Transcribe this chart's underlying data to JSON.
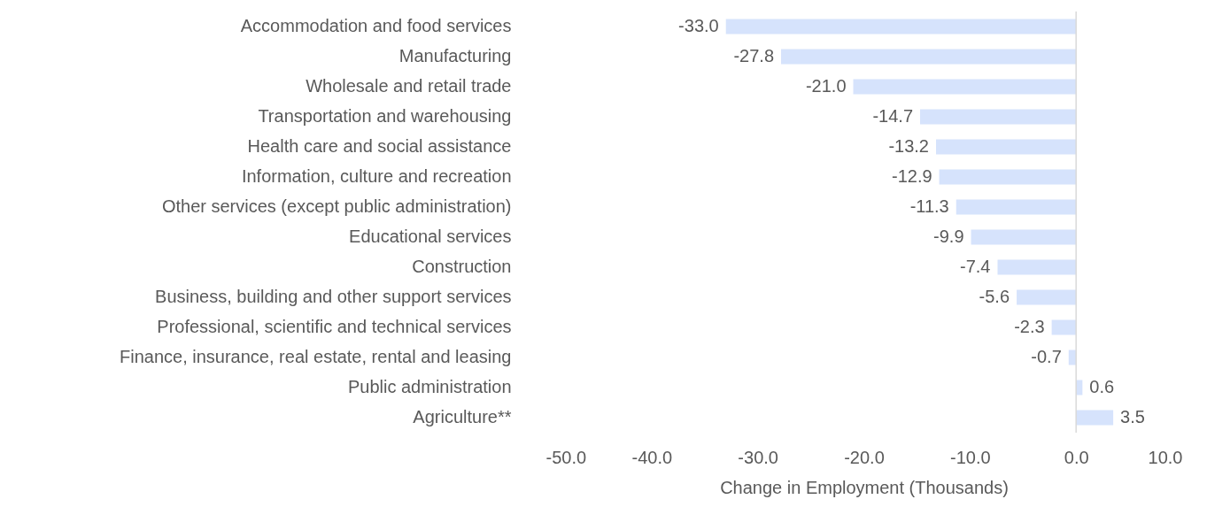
{
  "chart_data": {
    "type": "bar",
    "orientation": "horizontal",
    "xlabel": "Change in Employment (Thousands)",
    "categories": [
      "Accommodation and food services",
      "Manufacturing",
      "Wholesale and retail trade",
      "Transportation and warehousing",
      "Health care and social assistance",
      "Information, culture and recreation",
      "Other services (except public administration)",
      "Educational services",
      "Construction",
      "Business, building and other support services",
      "Professional, scientific and technical services",
      "Finance, insurance, real estate, rental and leasing",
      "Public administration",
      "Agriculture**"
    ],
    "values": [
      -33.0,
      -27.8,
      -21.0,
      -14.7,
      -13.2,
      -12.9,
      -11.3,
      -9.9,
      -7.4,
      -5.6,
      -2.3,
      -0.7,
      0.6,
      3.5
    ],
    "color": "#d6e3fc",
    "xlim": [
      -50,
      10
    ],
    "xticks": [
      {
        "value": -50,
        "label": "-50.0"
      },
      {
        "value": -40,
        "label": "-40.0"
      },
      {
        "value": -30,
        "label": "-30.0"
      },
      {
        "value": -20,
        "label": "-20.0"
      },
      {
        "value": -10,
        "label": "-10.0"
      },
      {
        "value": 0,
        "label": "0.0"
      },
      {
        "value": 10,
        "label": "10.0"
      }
    ],
    "value_labels": [
      "-33.0",
      "-27.8",
      "-21.0",
      "-14.7",
      "-13.2",
      "-12.9",
      "-11.3",
      "-9.9",
      "-7.4",
      "-5.6",
      "-2.3",
      "-0.7",
      "0.6",
      "3.5"
    ],
    "ref_lines": [
      {
        "axis": "x",
        "value": 0,
        "color": "#d9d9d9"
      }
    ]
  }
}
